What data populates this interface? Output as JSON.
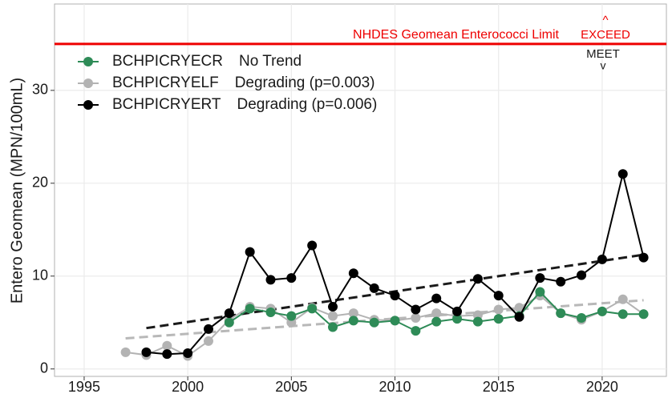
{
  "chart_data": {
    "type": "line",
    "ylabel": "Entero Geomean (MPN/100mL)",
    "xlim": [
      1993.57,
      2023.1
    ],
    "xticks": [
      1995,
      2000,
      2005,
      2010,
      2015,
      2020
    ],
    "ylim": [
      -0.8,
      39.3
    ],
    "yticks": [
      0,
      10,
      20,
      30
    ],
    "grid": true,
    "legend": "upper left",
    "limit": {
      "value": 35,
      "color": "#ee0000",
      "label": "NHDES Geomean Enterococci Limit",
      "above_arrow": "^",
      "above_label": "EXCEED",
      "below_label": "MEET",
      "below_arrow": "v"
    },
    "series": [
      {
        "name": "BCHPICRYECR",
        "trend_label": "No Trend",
        "color": "#2e8b57",
        "x": [
          2002,
          2003,
          2004,
          2005,
          2006,
          2007,
          2008,
          2009,
          2010,
          2011,
          2012,
          2013,
          2014,
          2015,
          2016,
          2017,
          2018,
          2019,
          2020,
          2021,
          2022
        ],
        "values": [
          5.0,
          6.5,
          6.1,
          5.7,
          6.5,
          4.5,
          5.2,
          5.0,
          5.2,
          4.1,
          5.1,
          5.4,
          5.1,
          5.4,
          5.7,
          8.3,
          6.0,
          5.5,
          6.2,
          5.9,
          5.9
        ]
      },
      {
        "name": "BCHPICRYELF",
        "trend_label": "Degrading (p=0.003)",
        "color": "#b3b3b3",
        "x": [
          1997,
          1998,
          1999,
          2000,
          2001,
          2002,
          2003,
          2004,
          2005,
          2006,
          2007,
          2008,
          2009,
          2010,
          2011,
          2012,
          2013,
          2014,
          2015,
          2016,
          2017,
          2018,
          2019,
          2020,
          2021,
          2022
        ],
        "values": [
          1.8,
          1.5,
          2.5,
          1.4,
          3.0,
          5.3,
          6.7,
          6.5,
          5.0,
          6.6,
          5.7,
          6.0,
          5.3,
          5.2,
          5.5,
          6.0,
          5.7,
          5.8,
          6.4,
          6.6,
          7.9,
          6.0,
          5.3,
          6.2,
          7.5,
          5.9
        ],
        "trend": {
          "x": [
            1997,
            2022
          ],
          "values": [
            3.3,
            7.4
          ]
        }
      },
      {
        "name": "BCHPICRYERT",
        "trend_label": "Degrading (p=0.006)",
        "color": "#000000",
        "x": [
          1998,
          1999,
          2000,
          2001,
          2002,
          2003,
          2004,
          2005,
          2006,
          2007,
          2008,
          2009,
          2010,
          2011,
          2012,
          2013,
          2014,
          2015,
          2016,
          2017,
          2018,
          2019,
          2020,
          2021,
          2022
        ],
        "values": [
          1.8,
          1.6,
          1.7,
          4.3,
          6.0,
          12.6,
          9.6,
          9.8,
          13.3,
          6.7,
          10.3,
          8.7,
          7.9,
          6.4,
          7.6,
          6.2,
          9.7,
          7.9,
          5.6,
          9.8,
          9.4,
          10.1,
          11.8,
          21.0,
          12.0
        ],
        "trend": {
          "x": [
            1998,
            2022
          ],
          "values": [
            4.4,
            12.3
          ]
        }
      }
    ]
  }
}
